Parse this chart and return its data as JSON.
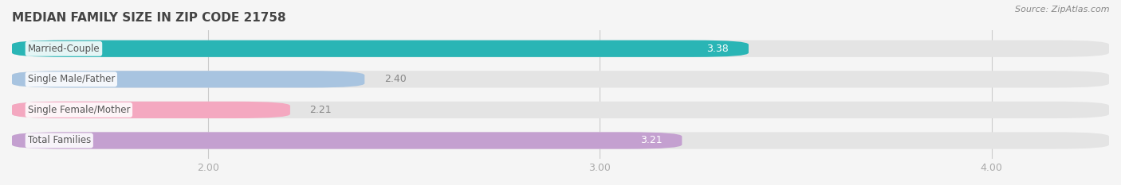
{
  "title": "MEDIAN FAMILY SIZE IN ZIP CODE 21758",
  "source": "Source: ZipAtlas.com",
  "categories": [
    "Married-Couple",
    "Single Male/Father",
    "Single Female/Mother",
    "Total Families"
  ],
  "values": [
    3.38,
    2.4,
    2.21,
    3.21
  ],
  "bar_colors": [
    "#2ab5b5",
    "#a8c4e0",
    "#f4a8c0",
    "#c4a0d0"
  ],
  "background_color": "#f5f5f5",
  "bar_bg_color": "#e4e4e4",
  "xlim": [
    1.5,
    4.3
  ],
  "xticks": [
    2.0,
    3.0,
    4.0
  ],
  "bar_height": 0.55
}
